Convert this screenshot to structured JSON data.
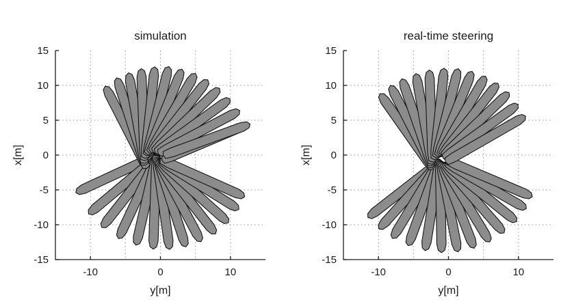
{
  "chart_data": [
    {
      "type": "line",
      "title": "simulation",
      "xlabel": "y[m]",
      "ylabel": "x[m]",
      "xlim": [
        -15,
        15
      ],
      "ylim": [
        -15,
        15
      ],
      "xticks": [
        -10,
        0,
        10
      ],
      "yticks": [
        15,
        10,
        5,
        0,
        -5,
        -10,
        -15
      ],
      "grid": true,
      "series": [
        {
          "values": [
            {
              "y": -6.1,
              "x": -2.6,
              "heading_deg": 205
            },
            {
              "y": -5.2,
              "x": -4.2,
              "heading_deg": 220
            },
            {
              "y": -4.3,
              "x": -5.2,
              "heading_deg": 232
            },
            {
              "y": -3.2,
              "x": -6.0,
              "heading_deg": 245
            },
            {
              "y": -2.0,
              "x": -6.5,
              "heading_deg": 257
            },
            {
              "y": -0.8,
              "x": -6.9,
              "heading_deg": 268
            },
            {
              "y": 0.4,
              "x": -7.0,
              "heading_deg": 278
            },
            {
              "y": 1.6,
              "x": -6.9,
              "heading_deg": 288
            },
            {
              "y": 2.7,
              "x": -6.6,
              "heading_deg": 298
            },
            {
              "y": 3.8,
              "x": -6.1,
              "heading_deg": 308
            },
            {
              "y": 4.8,
              "x": -5.3,
              "heading_deg": 318
            },
            {
              "y": 5.6,
              "x": -4.3,
              "heading_deg": 328
            },
            {
              "y": 6.0,
              "x": -3.3,
              "heading_deg": 336
            },
            {
              "y": -4.9,
              "x": 4.0,
              "heading_deg": 117
            },
            {
              "y": -4.2,
              "x": 4.8,
              "heading_deg": 108
            },
            {
              "y": -3.4,
              "x": 5.3,
              "heading_deg": 100
            },
            {
              "y": -2.5,
              "x": 5.8,
              "heading_deg": 92
            },
            {
              "y": -1.5,
              "x": 6.1,
              "heading_deg": 84
            },
            {
              "y": -0.4,
              "x": 6.3,
              "heading_deg": 76
            },
            {
              "y": 0.6,
              "x": 6.2,
              "heading_deg": 68
            },
            {
              "y": 1.7,
              "x": 6.0,
              "heading_deg": 60
            },
            {
              "y": 2.7,
              "x": 5.6,
              "heading_deg": 52
            },
            {
              "y": 3.7,
              "x": 5.0,
              "heading_deg": 44
            },
            {
              "y": 4.6,
              "x": 4.2,
              "heading_deg": 36
            },
            {
              "y": 5.5,
              "x": 3.3,
              "heading_deg": 28
            },
            {
              "y": 6.3,
              "x": 1.8,
              "heading_deg": 23
            },
            {
              "y": 6.6,
              "x": 2.2,
              "heading_deg": 20
            }
          ]
        }
      ]
    },
    {
      "type": "line",
      "title": "real-time steering",
      "xlabel": "y[m]",
      "ylabel": "x[m]",
      "xlim": [
        -15,
        15
      ],
      "ylim": [
        -15,
        15
      ],
      "xticks": [
        -10,
        0,
        10
      ],
      "yticks": [
        15,
        10,
        5,
        0,
        -5,
        -10,
        -15
      ],
      "grid": true,
      "series": [
        {
          "values": [
            {
              "y": -6.3,
              "x": -4.9,
              "heading_deg": 218
            },
            {
              "y": -5.5,
              "x": -5.7,
              "heading_deg": 228
            },
            {
              "y": -4.6,
              "x": -6.3,
              "heading_deg": 239
            },
            {
              "y": -3.5,
              "x": -6.8,
              "heading_deg": 250
            },
            {
              "y": -2.3,
              "x": -7.2,
              "heading_deg": 261
            },
            {
              "y": -1.1,
              "x": -7.4,
              "heading_deg": 271
            },
            {
              "y": 0.1,
              "x": -7.4,
              "heading_deg": 281
            },
            {
              "y": 1.3,
              "x": -7.2,
              "heading_deg": 291
            },
            {
              "y": 2.5,
              "x": -6.8,
              "heading_deg": 301
            },
            {
              "y": 3.6,
              "x": -6.2,
              "heading_deg": 311
            },
            {
              "y": 4.6,
              "x": -5.4,
              "heading_deg": 321
            },
            {
              "y": 5.4,
              "x": -4.4,
              "heading_deg": 330
            },
            {
              "y": 5.9,
              "x": -3.4,
              "heading_deg": 337
            },
            {
              "y": -6.0,
              "x": 3.4,
              "heading_deg": 125
            },
            {
              "y": -5.3,
              "x": 4.1,
              "heading_deg": 117
            },
            {
              "y": -4.5,
              "x": 4.7,
              "heading_deg": 109
            },
            {
              "y": -3.5,
              "x": 5.2,
              "heading_deg": 100
            },
            {
              "y": -2.5,
              "x": 5.6,
              "heading_deg": 92
            },
            {
              "y": -1.3,
              "x": 5.9,
              "heading_deg": 84
            },
            {
              "y": -0.2,
              "x": 6.0,
              "heading_deg": 76
            },
            {
              "y": 0.9,
              "x": 5.9,
              "heading_deg": 68
            },
            {
              "y": 2.0,
              "x": 5.6,
              "heading_deg": 60
            },
            {
              "y": 3.0,
              "x": 5.1,
              "heading_deg": 52
            },
            {
              "y": 3.9,
              "x": 4.4,
              "heading_deg": 44
            },
            {
              "y": 4.6,
              "x": 3.4,
              "heading_deg": 36
            },
            {
              "y": 5.3,
              "x": 2.3,
              "heading_deg": 30
            }
          ]
        }
      ]
    }
  ]
}
